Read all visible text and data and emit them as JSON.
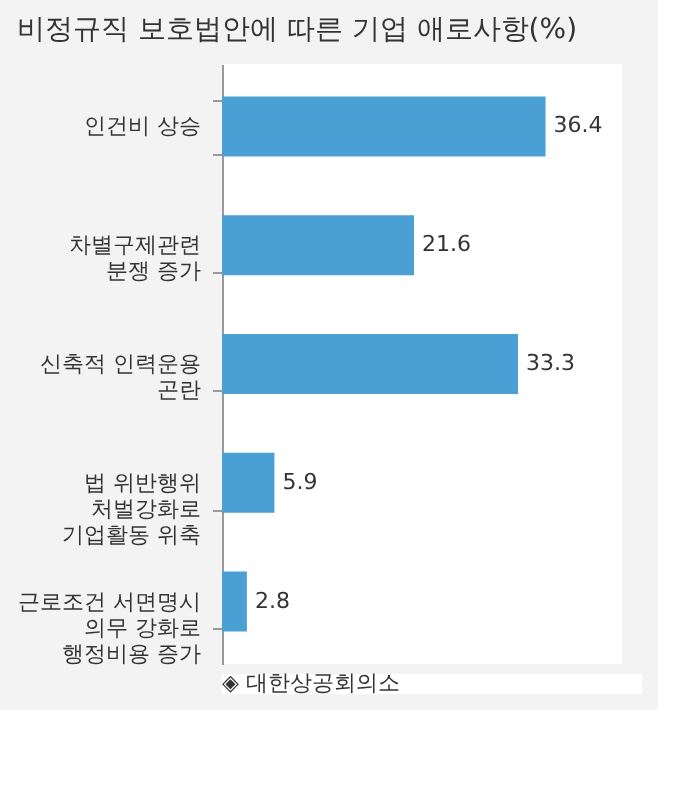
{
  "chart_data": {
    "type": "bar",
    "orientation": "horizontal",
    "title": "비정규직 보호법안에 따른 기업 애로사항(%)",
    "categories": [
      "인건비 상승",
      "차별구제관련\n분쟁 증가",
      "신축적 인력운용\n곤란",
      "법 위반행위\n처벌강화로\n기업활동 위축",
      "근로조건 서면명시\n의무 강화로\n행정비용 증가"
    ],
    "values": [
      36.4,
      21.6,
      33.3,
      5.9,
      2.8
    ],
    "color": "#4a9fd4",
    "xlim": [
      0,
      45
    ],
    "data_labels": true,
    "tick_labels": "y",
    "grid": false,
    "annotations": [
      "◈ 대한상공회의소"
    ]
  }
}
